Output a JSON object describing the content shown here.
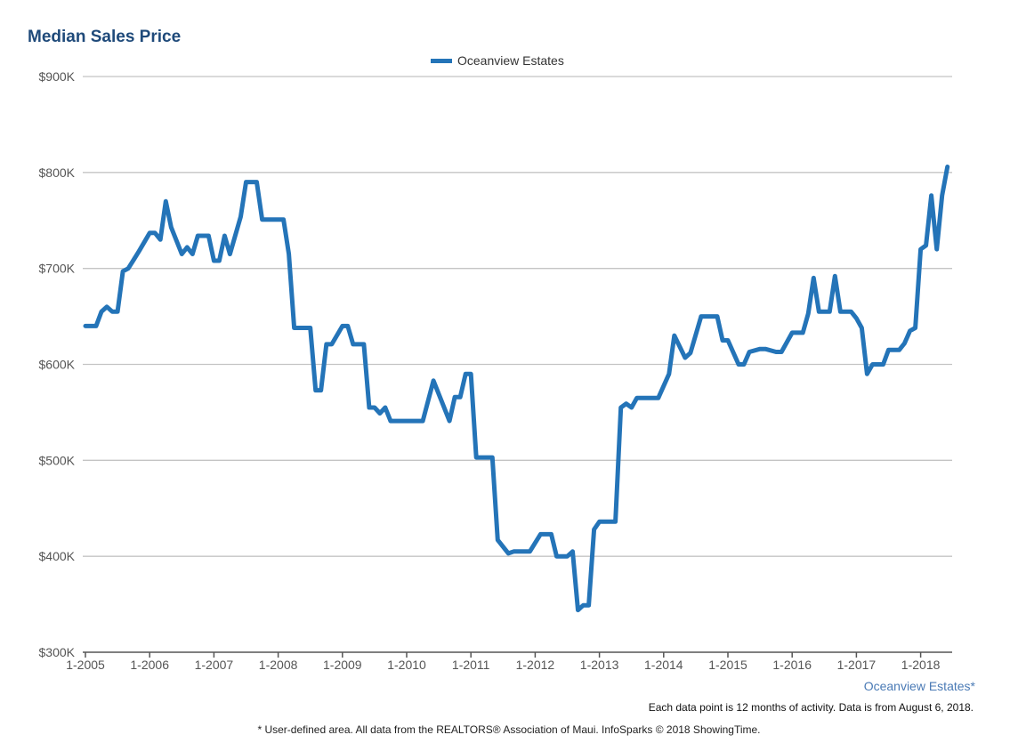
{
  "chart_data": {
    "type": "line",
    "title": "Median Sales Price",
    "xlabel": "",
    "ylabel": "",
    "ylim": [
      300000,
      900000
    ],
    "y_ticks": [
      "$300K",
      "$400K",
      "$500K",
      "$600K",
      "$700K",
      "$800K",
      "$900K"
    ],
    "x_ticks": [
      "1-2005",
      "1-2006",
      "1-2007",
      "1-2008",
      "1-2009",
      "1-2010",
      "1-2011",
      "1-2012",
      "1-2013",
      "1-2014",
      "1-2015",
      "1-2016",
      "1-2017",
      "1-2018"
    ],
    "grid": true,
    "legend_position": "top-center",
    "series": [
      {
        "name": "Oceanview Estates",
        "color": "#2474b8",
        "points": [
          [
            "2005-01",
            640
          ],
          [
            "2005-03",
            640
          ],
          [
            "2005-04",
            655
          ],
          [
            "2005-05",
            660
          ],
          [
            "2005-06",
            655
          ],
          [
            "2005-07",
            655
          ],
          [
            "2005-08",
            697
          ],
          [
            "2005-09",
            700
          ],
          [
            "2005-10",
            709
          ],
          [
            "2005-11",
            718
          ],
          [
            "2006-01",
            737
          ],
          [
            "2006-02",
            737
          ],
          [
            "2006-03",
            730
          ],
          [
            "2006-04",
            770
          ],
          [
            "2006-05",
            743
          ],
          [
            "2006-07",
            715
          ],
          [
            "2006-08",
            722
          ],
          [
            "2006-09",
            715
          ],
          [
            "2006-10",
            734
          ],
          [
            "2006-12",
            734
          ],
          [
            "2007-01",
            708
          ],
          [
            "2007-02",
            708
          ],
          [
            "2007-03",
            734
          ],
          [
            "2007-04",
            715
          ],
          [
            "2007-06",
            754
          ],
          [
            "2007-07",
            790
          ],
          [
            "2007-09",
            790
          ],
          [
            "2007-10",
            751
          ],
          [
            "2008-02",
            751
          ],
          [
            "2008-03",
            715
          ],
          [
            "2008-04",
            638
          ],
          [
            "2008-07",
            638
          ],
          [
            "2008-08",
            573
          ],
          [
            "2008-09",
            573
          ],
          [
            "2008-10",
            621
          ],
          [
            "2008-11",
            621
          ],
          [
            "2009-01",
            640
          ],
          [
            "2009-02",
            640
          ],
          [
            "2009-03",
            621
          ],
          [
            "2009-05",
            621
          ],
          [
            "2009-06",
            555
          ],
          [
            "2009-07",
            555
          ],
          [
            "2009-08",
            549
          ],
          [
            "2009-09",
            555
          ],
          [
            "2009-10",
            541
          ],
          [
            "2010-04",
            541
          ],
          [
            "2010-06",
            583
          ],
          [
            "2010-09",
            541
          ],
          [
            "2010-10",
            566
          ],
          [
            "2010-11",
            566
          ],
          [
            "2010-12",
            590
          ],
          [
            "2011-01",
            590
          ],
          [
            "2011-02",
            503
          ],
          [
            "2011-05",
            503
          ],
          [
            "2011-06",
            417
          ],
          [
            "2011-08",
            403
          ],
          [
            "2011-09",
            405
          ],
          [
            "2011-12",
            405
          ],
          [
            "2012-02",
            423
          ],
          [
            "2012-04",
            423
          ],
          [
            "2012-05",
            400
          ],
          [
            "2012-07",
            400
          ],
          [
            "2012-08",
            405
          ],
          [
            "2012-09",
            344
          ],
          [
            "2012-10",
            349
          ],
          [
            "2012-11",
            349
          ],
          [
            "2012-12",
            428
          ],
          [
            "2013-01",
            436
          ],
          [
            "2013-04",
            436
          ],
          [
            "2013-05",
            555
          ],
          [
            "2013-06",
            559
          ],
          [
            "2013-07",
            555
          ],
          [
            "2013-08",
            565
          ],
          [
            "2013-12",
            565
          ],
          [
            "2014-02",
            590
          ],
          [
            "2014-03",
            630
          ],
          [
            "2014-05",
            607
          ],
          [
            "2014-06",
            612
          ],
          [
            "2014-08",
            650
          ],
          [
            "2014-11",
            650
          ],
          [
            "2014-12",
            625
          ],
          [
            "2015-01",
            625
          ],
          [
            "2015-03",
            600
          ],
          [
            "2015-04",
            600
          ],
          [
            "2015-05",
            613
          ],
          [
            "2015-07",
            616
          ],
          [
            "2015-08",
            616
          ],
          [
            "2015-10",
            613
          ],
          [
            "2015-11",
            613
          ],
          [
            "2016-01",
            633
          ],
          [
            "2016-03",
            633
          ],
          [
            "2016-04",
            653
          ],
          [
            "2016-05",
            690
          ],
          [
            "2016-06",
            655
          ],
          [
            "2016-08",
            655
          ],
          [
            "2016-09",
            692
          ],
          [
            "2016-10",
            655
          ],
          [
            "2016-12",
            655
          ],
          [
            "2017-01",
            648
          ],
          [
            "2017-02",
            638
          ],
          [
            "2017-03",
            590
          ],
          [
            "2017-04",
            600
          ],
          [
            "2017-06",
            600
          ],
          [
            "2017-07",
            615
          ],
          [
            "2017-09",
            615
          ],
          [
            "2017-10",
            622
          ],
          [
            "2017-11",
            635
          ],
          [
            "2017-12",
            638
          ],
          [
            "2018-01",
            720
          ],
          [
            "2018-02",
            724
          ],
          [
            "2018-03",
            776
          ],
          [
            "2018-04",
            720
          ],
          [
            "2018-05",
            776
          ],
          [
            "2018-06",
            806
          ]
        ]
      }
    ],
    "y_unit": "thousands of dollars"
  },
  "legend": {
    "label": "Oceanview Estates"
  },
  "area_label": "Oceanview Estates*",
  "note_data": "Each data point is 12 months of activity. Data is from August 6, 2018.",
  "note_source": "* User-defined area. All data from the REALTORS® Association of Maui. InfoSparks © 2018 ShowingTime."
}
